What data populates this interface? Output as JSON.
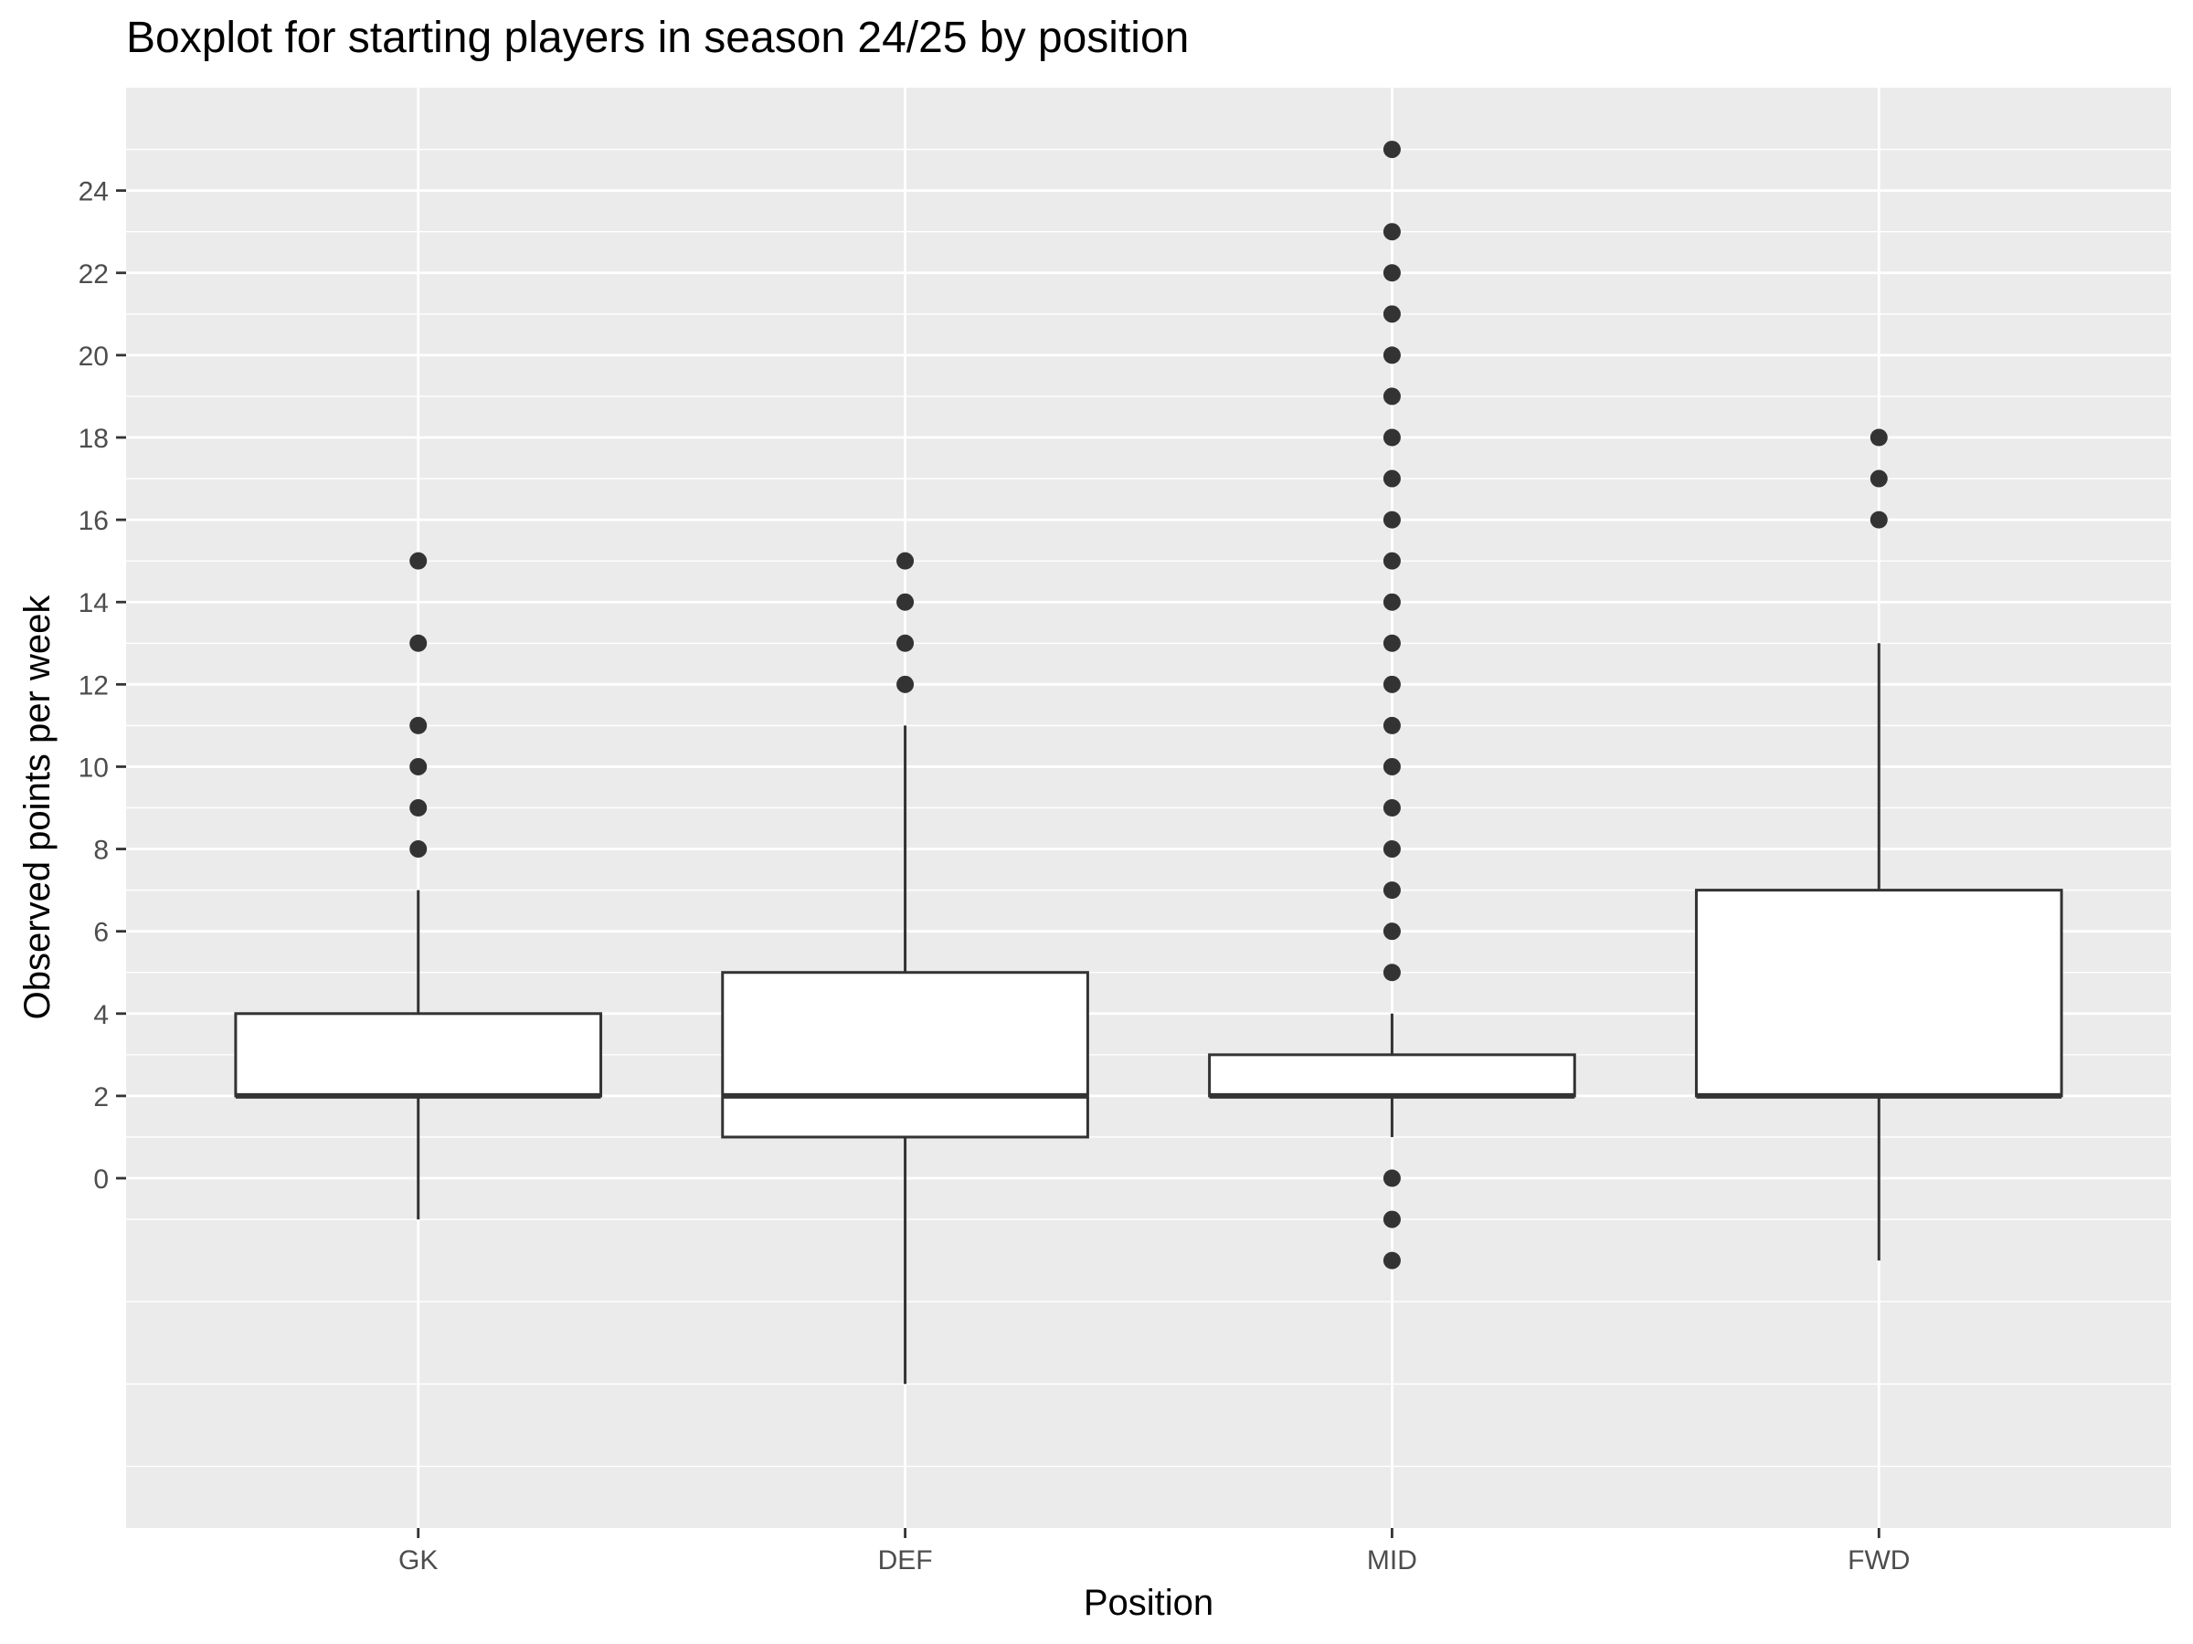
{
  "chart_data": {
    "type": "boxplot",
    "title": "Boxplot for starting players in season 24/25 by position",
    "xlabel": "Position",
    "ylabel": "Observed points per week",
    "categories": [
      "GK",
      "DEF",
      "MID",
      "FWD"
    ],
    "ylim": [
      -8.5,
      26.5
    ],
    "yticks": [
      0,
      2,
      4,
      6,
      8,
      10,
      12,
      14,
      16,
      18,
      20,
      22,
      24
    ],
    "grid": true,
    "legend": "none",
    "boxes": [
      {
        "category": "GK",
        "whisker_low": -1,
        "q1": 2,
        "median": 2,
        "q3": 4,
        "whisker_high": 7,
        "outliers": [
          8,
          9,
          10,
          11,
          13,
          15
        ]
      },
      {
        "category": "DEF",
        "whisker_low": -5,
        "q1": 1,
        "median": 2,
        "q3": 5,
        "whisker_high": 11,
        "outliers": [
          12,
          13,
          14,
          15
        ]
      },
      {
        "category": "MID",
        "whisker_low": 1,
        "q1": 2,
        "median": 2,
        "q3": 3,
        "whisker_high": 4,
        "outliers": [
          -2,
          -1,
          0,
          5,
          6,
          7,
          8,
          9,
          10,
          11,
          12,
          13,
          14,
          15,
          16,
          17,
          18,
          19,
          20,
          21,
          22,
          23,
          25
        ]
      },
      {
        "category": "FWD",
        "whisker_low": -2,
        "q1": 2,
        "median": 2,
        "q3": 7,
        "whisker_high": 13,
        "outliers": [
          16,
          17,
          18
        ]
      }
    ],
    "colors": {
      "panel_background": "#ebebeb",
      "grid_major": "#ffffff",
      "box_fill": "#ffffff",
      "box_stroke": "#333333",
      "outlier": "#333333",
      "tick_text": "#4d4d4d"
    }
  }
}
